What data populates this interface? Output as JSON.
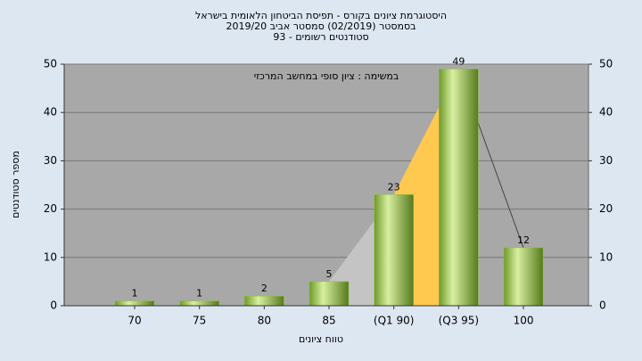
{
  "chart_data": {
    "type": "bar",
    "title": "היסטוגרמת ציונים בקורס - תפיסת הביטחון הלאומית בישראל",
    "subtitle": "בסמסטר  (02/2019)  סמסטר אביב 2019/20",
    "subtitle2": "סטודנטים רשומים - 93",
    "annotation": "במשימה : ציון סופי במחשב המרכזי",
    "x_label": "טווח ציונים",
    "y_label": "מספר סטודנטים",
    "categories": [
      "70",
      "75",
      "80",
      "85",
      "(Q1 90)",
      "(Q3 95)",
      "100"
    ],
    "values": [
      1,
      1,
      2,
      5,
      23,
      49,
      12
    ],
    "color": "#8fbf3f",
    "ylim": [
      0,
      50
    ],
    "yticks": [
      0,
      10,
      20,
      30,
      40,
      50
    ],
    "y2lim": [
      0,
      50
    ],
    "y2ticks": [
      0,
      10,
      20,
      30,
      40,
      50
    ],
    "grid": true
  }
}
